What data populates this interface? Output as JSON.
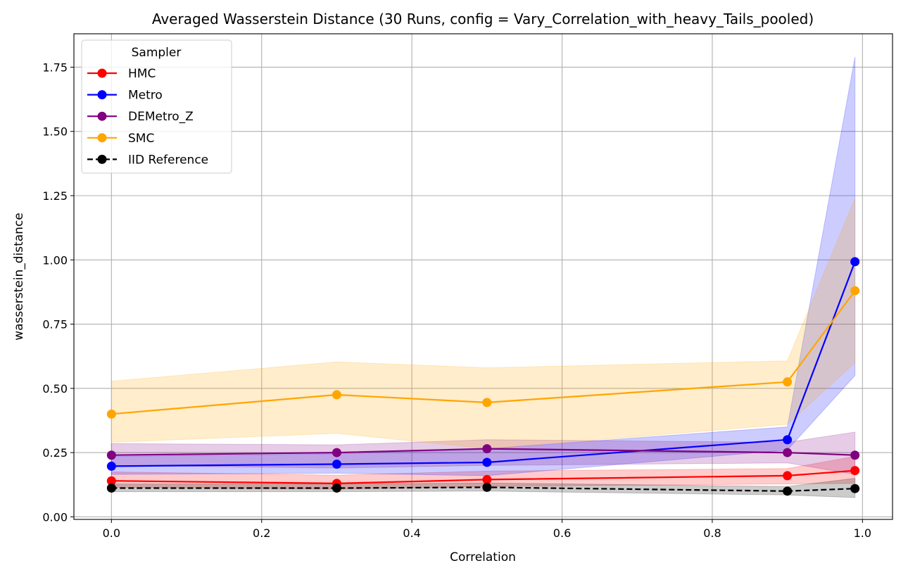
{
  "chart_data": {
    "type": "line",
    "title": "Averaged Wasserstein Distance (30 Runs, config = Vary_Correlation_with_heavy_Tails_pooled)",
    "xlabel": "Correlation",
    "ylabel": "wasserstein_distance",
    "xlim": [
      -0.05,
      1.04
    ],
    "ylim": [
      -0.01,
      1.88
    ],
    "xticks": [
      "0.0",
      "0.2",
      "0.4",
      "0.6",
      "0.8",
      "1.0"
    ],
    "yticks": [
      "0.00",
      "0.25",
      "0.50",
      "0.75",
      "1.00",
      "1.25",
      "1.50",
      "1.75"
    ],
    "grid": true,
    "legend": {
      "title": "Sampler",
      "position": "top-left"
    },
    "x": [
      0.0,
      0.3,
      0.5,
      0.9,
      0.99
    ],
    "series": [
      {
        "name": "HMC",
        "color": "#ff0000",
        "linestyle": "solid",
        "values": [
          0.14,
          0.13,
          0.145,
          0.16,
          0.18
        ],
        "band_lower": [
          0.115,
          0.108,
          0.118,
          0.128,
          0.13
        ],
        "band_upper": [
          0.175,
          0.162,
          0.178,
          0.188,
          0.235
        ]
      },
      {
        "name": "Metro",
        "color": "#0000ff",
        "linestyle": "solid",
        "values": [
          0.197,
          0.205,
          0.212,
          0.3,
          0.993
        ],
        "band_lower": [
          0.165,
          0.17,
          0.16,
          0.26,
          0.55
        ],
        "band_upper": [
          0.235,
          0.245,
          0.265,
          0.35,
          1.79
        ]
      },
      {
        "name": "DEMetro_Z",
        "color": "#800080",
        "linestyle": "solid",
        "values": [
          0.24,
          0.25,
          0.265,
          0.25,
          0.24
        ],
        "band_lower": [
          0.2,
          0.19,
          0.2,
          0.21,
          0.165
        ],
        "band_upper": [
          0.285,
          0.28,
          0.3,
          0.29,
          0.33
        ]
      },
      {
        "name": "SMC",
        "color": "#ffa500",
        "linestyle": "solid",
        "values": [
          0.4,
          0.475,
          0.445,
          0.525,
          0.88
        ],
        "band_lower": [
          0.29,
          0.325,
          0.265,
          0.36,
          0.6
        ],
        "band_upper": [
          0.528,
          0.603,
          0.58,
          0.607,
          1.24
        ]
      },
      {
        "name": "IID Reference",
        "color": "#000000",
        "linestyle": "dashed",
        "values": [
          0.112,
          0.112,
          0.115,
          0.1,
          0.11
        ],
        "band_lower": [
          0.098,
          0.098,
          0.1,
          0.085,
          0.075
        ],
        "band_upper": [
          0.128,
          0.128,
          0.132,
          0.118,
          0.15
        ]
      }
    ]
  }
}
